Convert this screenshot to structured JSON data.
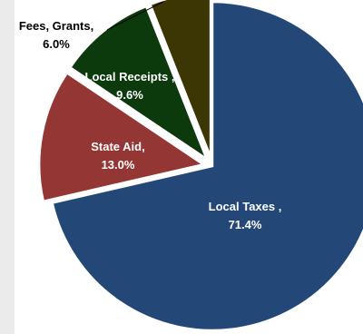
{
  "chart_data": {
    "type": "pie",
    "title": "",
    "slices": [
      {
        "label": "Local Taxes ,",
        "value": 71.4,
        "value_label": "71.4%",
        "color": "#234878",
        "exploded": false,
        "label_color": "#ffffff"
      },
      {
        "label": "State Aid,",
        "value": 13.0,
        "value_label": "13.0%",
        "color": "#943634",
        "exploded": true,
        "label_color": "#ffffff"
      },
      {
        "label": "Local Receipts ,",
        "value": 9.6,
        "value_label": "9.6%",
        "color": "#0d3a0d",
        "exploded": true,
        "label_color": "#ffffff"
      },
      {
        "label": "Fees, Grants,",
        "value": 6.0,
        "value_label": "6.0%",
        "color": "#3c3604",
        "exploded": true,
        "label_color": "#000000"
      }
    ],
    "start_angle_deg": 0,
    "direction": "clockwise"
  }
}
